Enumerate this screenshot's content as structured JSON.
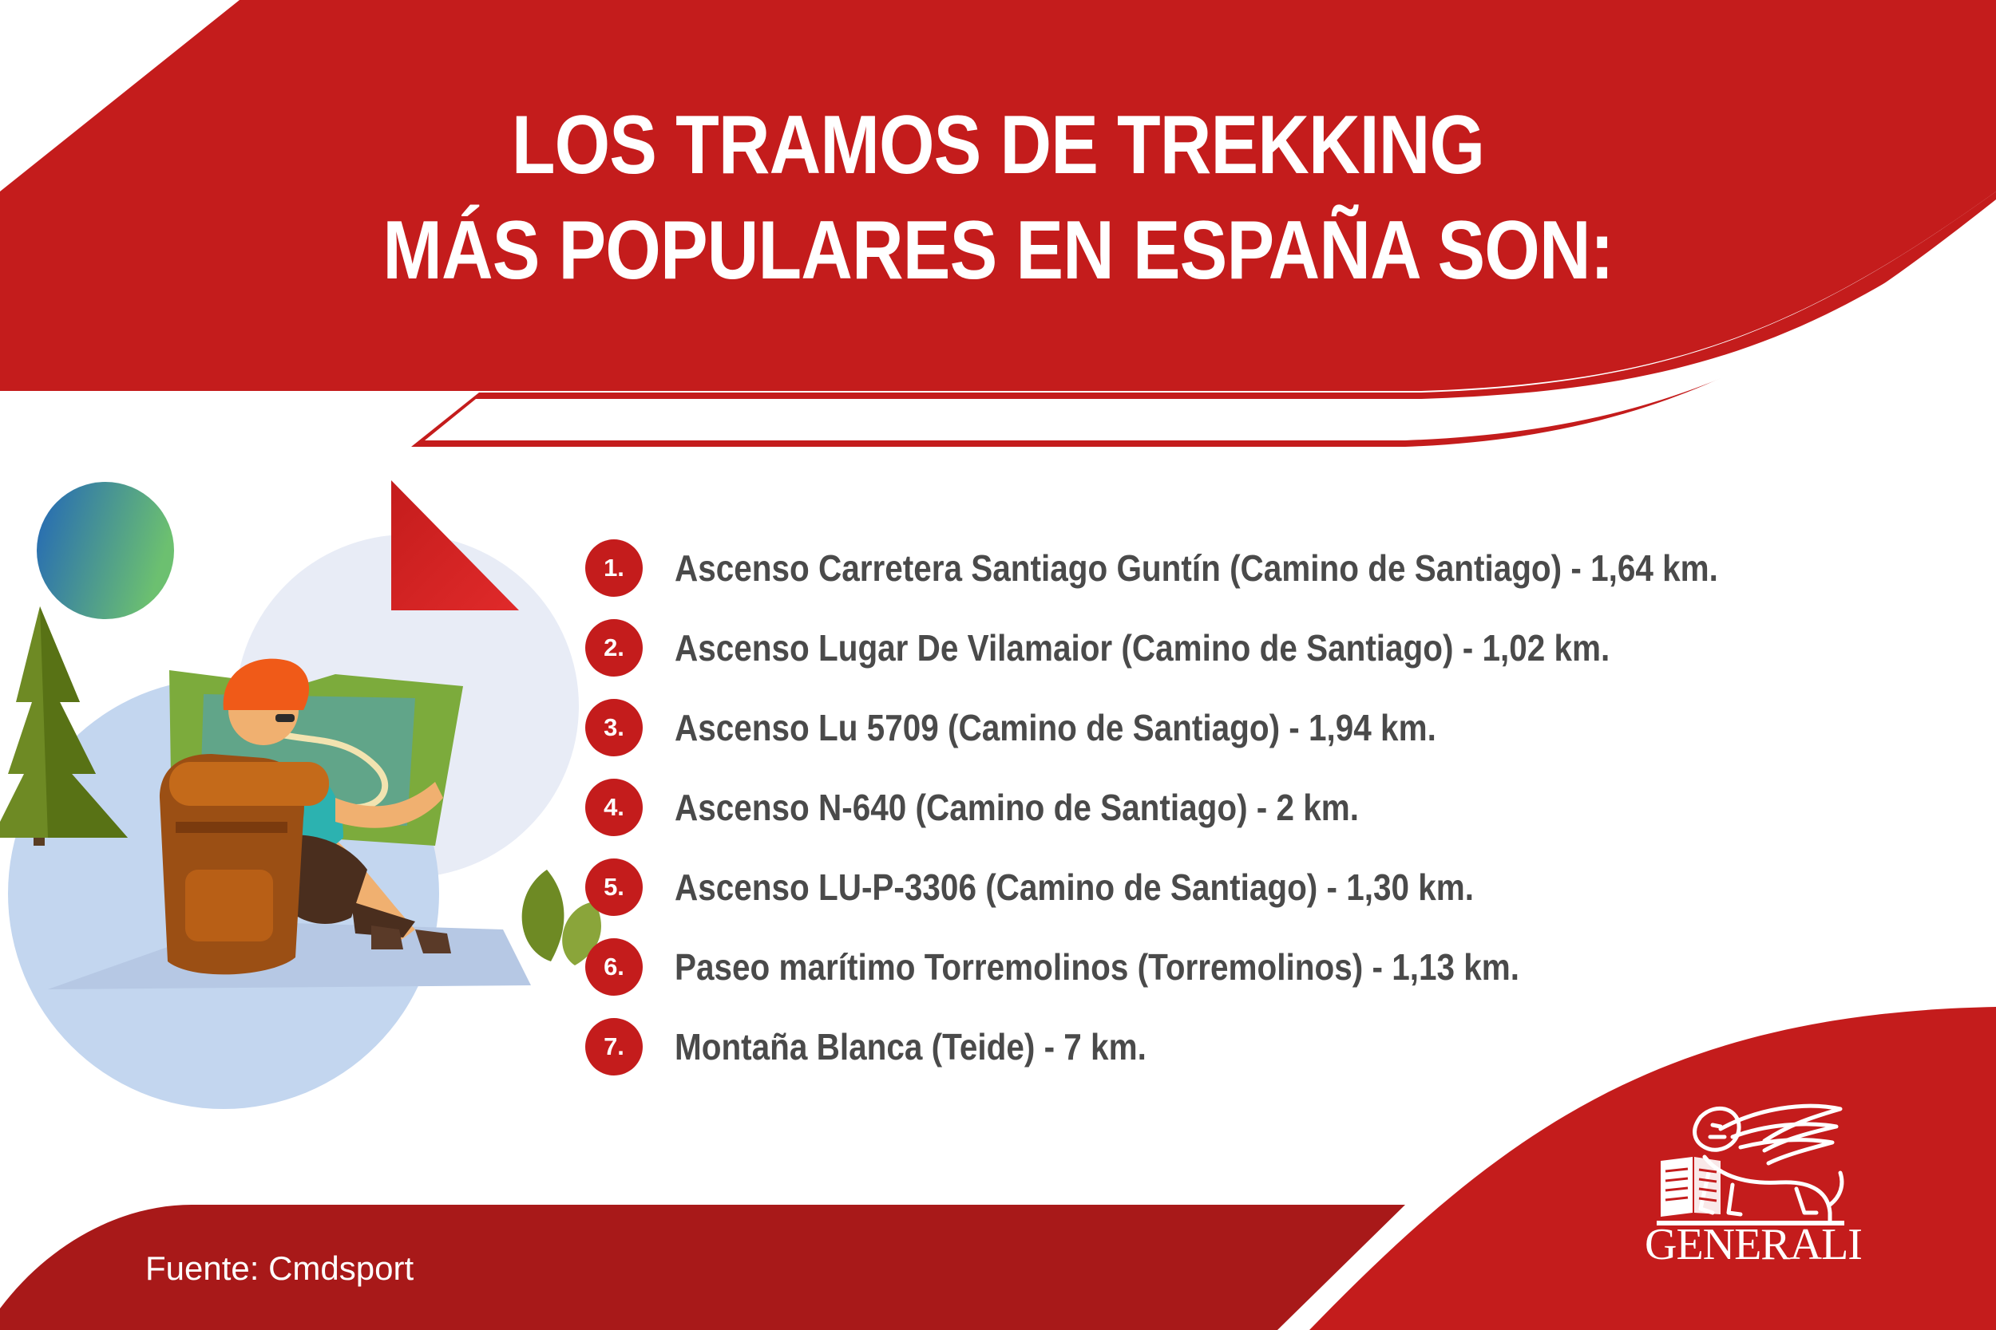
{
  "header": {
    "title_line1": "LOS TRAMOS DE TREKKING",
    "title_line2": "MÁS POPULARES EN ESPAÑA SON:"
  },
  "list": {
    "items": [
      {
        "number": "1.",
        "text": "Ascenso Carretera Santiago Guntín (Camino de Santiago) - 1,64 km."
      },
      {
        "number": "2.",
        "text": "Ascenso Lugar De Vilamaior (Camino de Santiago) - 1,02 km."
      },
      {
        "number": "3.",
        "text": "Ascenso Lu 5709 (Camino de Santiago) - 1,94 km."
      },
      {
        "number": "4.",
        "text": "Ascenso N-640 (Camino de Santiago) - 2 km."
      },
      {
        "number": "5.",
        "text": "Ascenso LU-P-3306 (Camino de Santiago) - 1,30 km."
      },
      {
        "number": "6.",
        "text": "Paseo marítimo Torremolinos (Torremolinos) - 1,13 km."
      },
      {
        "number": "7.",
        "text": "Montaña Blanca (Teide) - 7 km."
      }
    ]
  },
  "footer": {
    "source": "Fuente: Cmdsport",
    "brand": "GENERALI"
  },
  "colors": {
    "brand_red": "#c41c1c",
    "text_gray": "#4a4a4a",
    "background": "#ffffff"
  },
  "illustration": {
    "icons": [
      "hiker-with-map-icon",
      "pine-tree-icon",
      "sun-orb-icon",
      "flag-icon",
      "leaf-icon",
      "lion-logo-icon"
    ]
  }
}
